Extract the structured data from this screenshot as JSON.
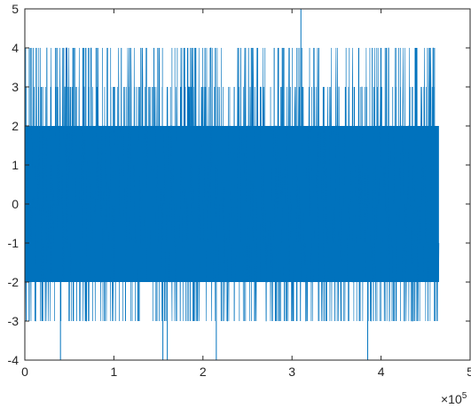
{
  "chart_data": {
    "type": "line",
    "title": "",
    "xlabel": "",
    "ylabel": "",
    "xlim": [
      0,
      5
    ],
    "ylim": [
      -4,
      5
    ],
    "x_exponent_label": "×10",
    "x_exponent_power": "5",
    "xticks": [
      "0",
      "1",
      "2",
      "3",
      "4",
      "5"
    ],
    "yticks": [
      "-4",
      "-3",
      "-2",
      "-1",
      "0",
      "1",
      "2",
      "3",
      "4",
      "5"
    ],
    "grid": false,
    "series": [
      {
        "color": "#0072BD",
        "x_range": [
          0,
          4.65
        ],
        "dense_band": [
          -2,
          2
        ],
        "occasional_range": [
          -3,
          4
        ],
        "rare_extremes": [
          -4,
          5
        ],
        "sample_points": [
          [
            0.05,
            4
          ],
          [
            0.4,
            -4
          ],
          [
            0.55,
            4
          ],
          [
            0.8,
            4
          ],
          [
            1.0,
            3
          ],
          [
            1.27,
            -3
          ],
          [
            1.45,
            4
          ],
          [
            1.55,
            -4
          ],
          [
            1.6,
            -4
          ],
          [
            1.8,
            3
          ],
          [
            2.15,
            -4
          ],
          [
            2.4,
            4
          ],
          [
            2.8,
            4
          ],
          [
            3.1,
            5
          ],
          [
            3.3,
            4
          ],
          [
            3.6,
            3
          ],
          [
            3.85,
            -4
          ],
          [
            4.0,
            4
          ],
          [
            4.4,
            4
          ],
          [
            4.6,
            -3
          ]
        ]
      }
    ]
  }
}
